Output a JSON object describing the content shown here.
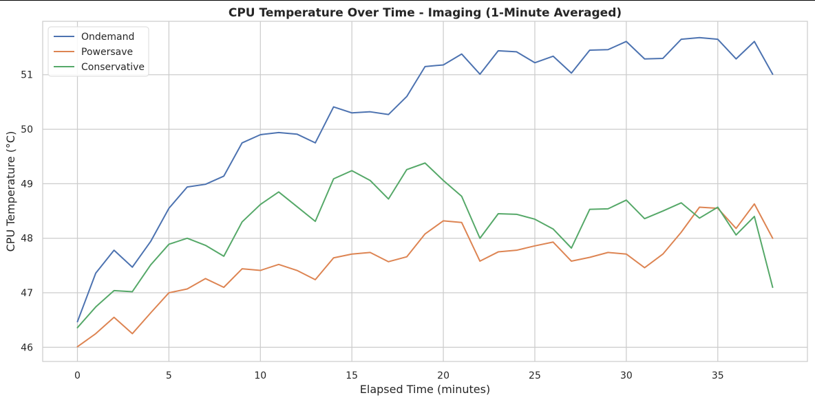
{
  "chart_data": {
    "type": "line",
    "title": "CPU Temperature Over Time - Imaging (1-Minute Averaged)",
    "xlabel": "Elapsed Time (minutes)",
    "ylabel": "CPU Temperature (°C)",
    "xlim": [
      -1.9,
      39.9
    ],
    "ylim": [
      45.74,
      51.98
    ],
    "xticks": [
      0,
      5,
      10,
      15,
      20,
      25,
      30,
      35
    ],
    "yticks": [
      46,
      47,
      48,
      49,
      50,
      51
    ],
    "grid": true,
    "legend_position": "top-left",
    "x": [
      0,
      1,
      2,
      3,
      4,
      5,
      6,
      7,
      8,
      9,
      10,
      11,
      12,
      13,
      14,
      15,
      16,
      17,
      18,
      19,
      20,
      21,
      22,
      23,
      24,
      25,
      26,
      27,
      28,
      29,
      30,
      31,
      32,
      33,
      34,
      35,
      36,
      37,
      38
    ],
    "series": [
      {
        "name": "Ondemand",
        "color": "#4c72b0",
        "values": [
          46.47,
          47.36,
          47.78,
          47.47,
          47.94,
          48.55,
          48.94,
          48.99,
          49.14,
          49.75,
          49.9,
          49.94,
          49.91,
          49.75,
          50.41,
          50.3,
          50.32,
          50.27,
          50.6,
          51.15,
          51.18,
          51.38,
          51.01,
          51.44,
          51.42,
          51.22,
          51.34,
          51.03,
          51.45,
          51.46,
          51.61,
          51.29,
          51.3,
          51.65,
          51.68,
          51.65,
          51.29,
          51.61,
          51.01
        ]
      },
      {
        "name": "Powersave",
        "color": "#dd8452",
        "values": [
          46.01,
          46.25,
          46.55,
          46.25,
          46.63,
          47.0,
          47.07,
          47.26,
          47.1,
          47.44,
          47.41,
          47.52,
          47.41,
          47.24,
          47.64,
          47.71,
          47.74,
          47.57,
          47.66,
          48.08,
          48.32,
          48.29,
          47.58,
          47.75,
          47.78,
          47.86,
          47.93,
          47.58,
          47.65,
          47.74,
          47.71,
          47.46,
          47.71,
          48.11,
          48.57,
          48.55,
          48.18,
          48.63,
          48.0
        ]
      },
      {
        "name": "Conservative",
        "color": "#55a868",
        "values": [
          46.36,
          46.74,
          47.04,
          47.02,
          47.51,
          47.89,
          48.0,
          47.87,
          47.67,
          48.3,
          48.62,
          48.85,
          48.58,
          48.31,
          49.09,
          49.24,
          49.06,
          48.72,
          49.26,
          49.38,
          49.06,
          48.77,
          48.0,
          48.45,
          48.44,
          48.35,
          48.17,
          47.82,
          48.53,
          48.54,
          48.7,
          48.36,
          48.5,
          48.65,
          48.37,
          48.57,
          48.06,
          48.4,
          47.1
        ]
      }
    ]
  }
}
